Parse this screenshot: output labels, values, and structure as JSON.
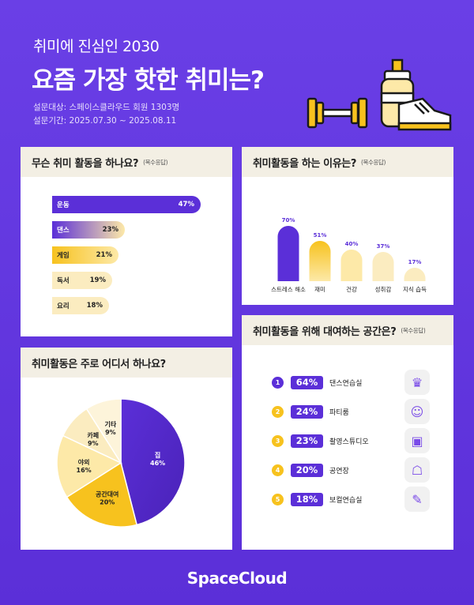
{
  "header": {
    "subtitle": "취미에 진심인 2030",
    "title": "요즘 가장 핫한 취미는?",
    "meta_target": "설문대상: 스페이스클라우드 회원 1303명",
    "meta_period": "설문기간: 2025.07.30 ~ 2025.08.11"
  },
  "colors": {
    "purple": "#5b2fd8",
    "yellow": "#f7c21e",
    "light_yellow": "#fde9a8",
    "cream": "#fbecc0",
    "card_header": "#f3efe4"
  },
  "footer": {
    "brand": "SpaceCloud"
  },
  "chart_data": [
    {
      "type": "bar",
      "orientation": "horizontal",
      "title": "무슨 취미 활동을 하나요?",
      "note": "(복수응답)",
      "categories": [
        "운동",
        "댄스",
        "게임",
        "독서",
        "요리"
      ],
      "values": [
        47,
        23,
        21,
        19,
        18
      ],
      "value_labels": [
        "47%",
        "23%",
        "21%",
        "19%",
        "18%"
      ]
    },
    {
      "type": "bar",
      "title": "취미활동을 하는 이유는?",
      "note": "(복수응답)",
      "categories": [
        "스트레스 해소",
        "재미",
        "건강",
        "성취감",
        "지식 습득"
      ],
      "values": [
        70,
        51,
        40,
        37,
        17
      ],
      "value_labels": [
        "70%",
        "51%",
        "40%",
        "37%",
        "17%"
      ]
    },
    {
      "type": "pie",
      "title": "취미활동은 주로 어디서 하나요?",
      "categories": [
        "집",
        "공간대여",
        "야외",
        "카페",
        "기타"
      ],
      "values": [
        46,
        20,
        16,
        9,
        9
      ],
      "value_labels": [
        "46%",
        "20%",
        "16%",
        "9%",
        "9%"
      ]
    },
    {
      "type": "table",
      "title": "취미활동을 위해 대여하는 공간은?",
      "note": "(복수응답)",
      "ranks": [
        "1",
        "2",
        "3",
        "4",
        "5"
      ],
      "categories": [
        "댄스연습실",
        "파티룸",
        "촬영스튜디오",
        "공연장",
        "보컬연습실"
      ],
      "values": [
        64,
        24,
        23,
        20,
        18
      ],
      "value_labels": [
        "64%",
        "24%",
        "23%",
        "20%",
        "18%"
      ],
      "icons": [
        "dancer-icon",
        "party-icon",
        "camera-icon",
        "stage-icon",
        "microphone-icon"
      ]
    }
  ]
}
